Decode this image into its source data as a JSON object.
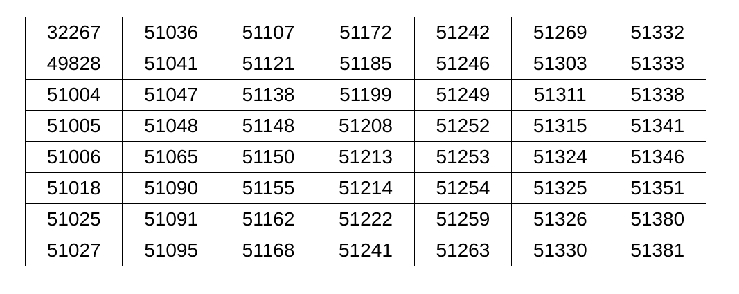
{
  "table": {
    "columns": 7,
    "row_count": 8,
    "border_color": "#000000",
    "text_color": "#000000",
    "background_color": "#ffffff",
    "rows": [
      [
        "32267",
        "51036",
        "51107",
        "51172",
        "51242",
        "51269",
        "51332"
      ],
      [
        "49828",
        "51041",
        "51121",
        "51185",
        "51246",
        "51303",
        "51333"
      ],
      [
        "51004",
        "51047",
        "51138",
        "51199",
        "51249",
        "51311",
        "51338"
      ],
      [
        "51005",
        "51048",
        "51148",
        "51208",
        "51252",
        "51315",
        "51341"
      ],
      [
        "51006",
        "51065",
        "51150",
        "51213",
        "51253",
        "51324",
        "51346"
      ],
      [
        "51018",
        "51090",
        "51155",
        "51214",
        "51254",
        "51325",
        "51351"
      ],
      [
        "51025",
        "51091",
        "51162",
        "51222",
        "51259",
        "51326",
        "51380"
      ],
      [
        "51027",
        "51095",
        "51168",
        "51241",
        "51263",
        "51330",
        "51381"
      ]
    ]
  }
}
